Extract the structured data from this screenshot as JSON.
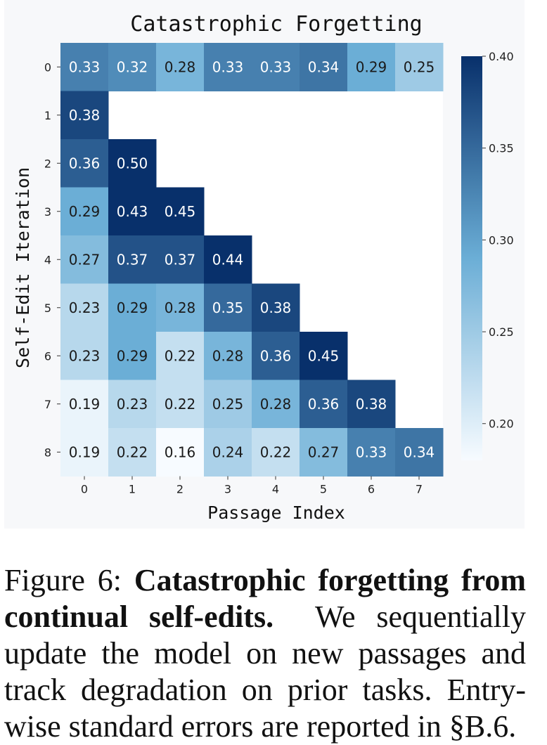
{
  "chart_data": {
    "type": "heatmap",
    "title": "Catastrophic Forgetting",
    "xlabel": "Passage Index",
    "ylabel": "Self-Edit Iteration",
    "x": [
      "0",
      "1",
      "2",
      "3",
      "4",
      "5",
      "6",
      "7"
    ],
    "y": [
      "0",
      "1",
      "2",
      "3",
      "4",
      "5",
      "6",
      "7",
      "8"
    ],
    "values": [
      [
        0.33,
        0.32,
        0.28,
        0.33,
        0.33,
        0.34,
        0.29,
        0.25
      ],
      [
        0.38,
        null,
        null,
        null,
        null,
        null,
        null,
        null
      ],
      [
        0.36,
        0.5,
        null,
        null,
        null,
        null,
        null,
        null
      ],
      [
        0.29,
        0.43,
        0.45,
        null,
        null,
        null,
        null,
        null
      ],
      [
        0.27,
        0.37,
        0.37,
        0.44,
        null,
        null,
        null,
        null
      ],
      [
        0.23,
        0.29,
        0.28,
        0.35,
        0.38,
        null,
        null,
        null
      ],
      [
        0.23,
        0.29,
        0.22,
        0.28,
        0.36,
        0.45,
        null,
        null
      ],
      [
        0.19,
        0.23,
        0.22,
        0.25,
        0.28,
        0.36,
        0.38,
        null
      ],
      [
        0.19,
        0.22,
        0.16,
        0.24,
        0.22,
        0.27,
        0.33,
        0.34
      ]
    ],
    "colorbar": {
      "range": [
        0.18,
        0.4
      ],
      "ticks": [
        "0.20",
        "0.25",
        "0.30",
        "0.35",
        "0.40"
      ],
      "colormap": "Blues",
      "colors": {
        "low": "#f7fbff",
        "mid": "#6baed6",
        "high": "#08306b"
      }
    },
    "background": "#f7f8fa"
  },
  "caption": {
    "label": "Figure 6:",
    "bold": "Catastrophic forgetting from continual self-edits.",
    "text": "We sequentially update the model on new passages and track degradation on prior tasks. Entry-wise standard errors are reported in §B.6."
  }
}
